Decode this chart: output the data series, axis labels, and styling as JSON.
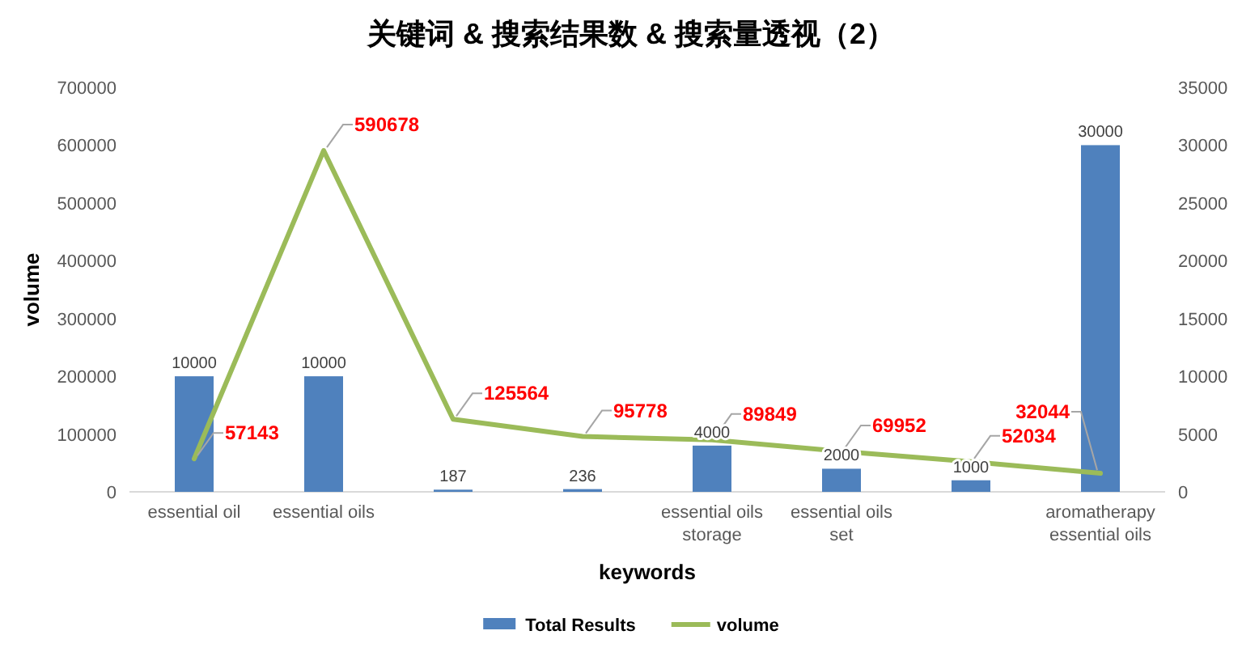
{
  "chart_data": {
    "type": "bar",
    "title": "关键词 & 搜索结果数 & 搜索量透视（2）",
    "xlabel": "keywords",
    "ylabel": "volume",
    "categories": [
      "essential oil",
      "essential oils",
      null,
      null,
      "essential oils storage",
      "essential oils set",
      null,
      "aromatherapy essential oils"
    ],
    "series": [
      {
        "name": "Total Results",
        "axis": "y2",
        "color": "#4f81bd",
        "values": [
          10000,
          10000,
          187,
          236,
          4000,
          2000,
          1000,
          30000
        ]
      },
      {
        "name": "volume",
        "type": "line",
        "color": "#9bbb59",
        "values": [
          57143,
          590678,
          125564,
          95778,
          89849,
          69952,
          52034,
          32044
        ]
      }
    ],
    "ylim": [
      0,
      700000
    ],
    "yticks": [
      0,
      100000,
      200000,
      300000,
      400000,
      500000,
      600000,
      700000
    ],
    "y2lim": [
      0,
      35000
    ],
    "y2ticks": [
      0,
      5000,
      10000,
      15000,
      20000,
      25000,
      30000,
      35000
    ],
    "data_labels": true,
    "legend": "bottom",
    "marker": "none"
  }
}
